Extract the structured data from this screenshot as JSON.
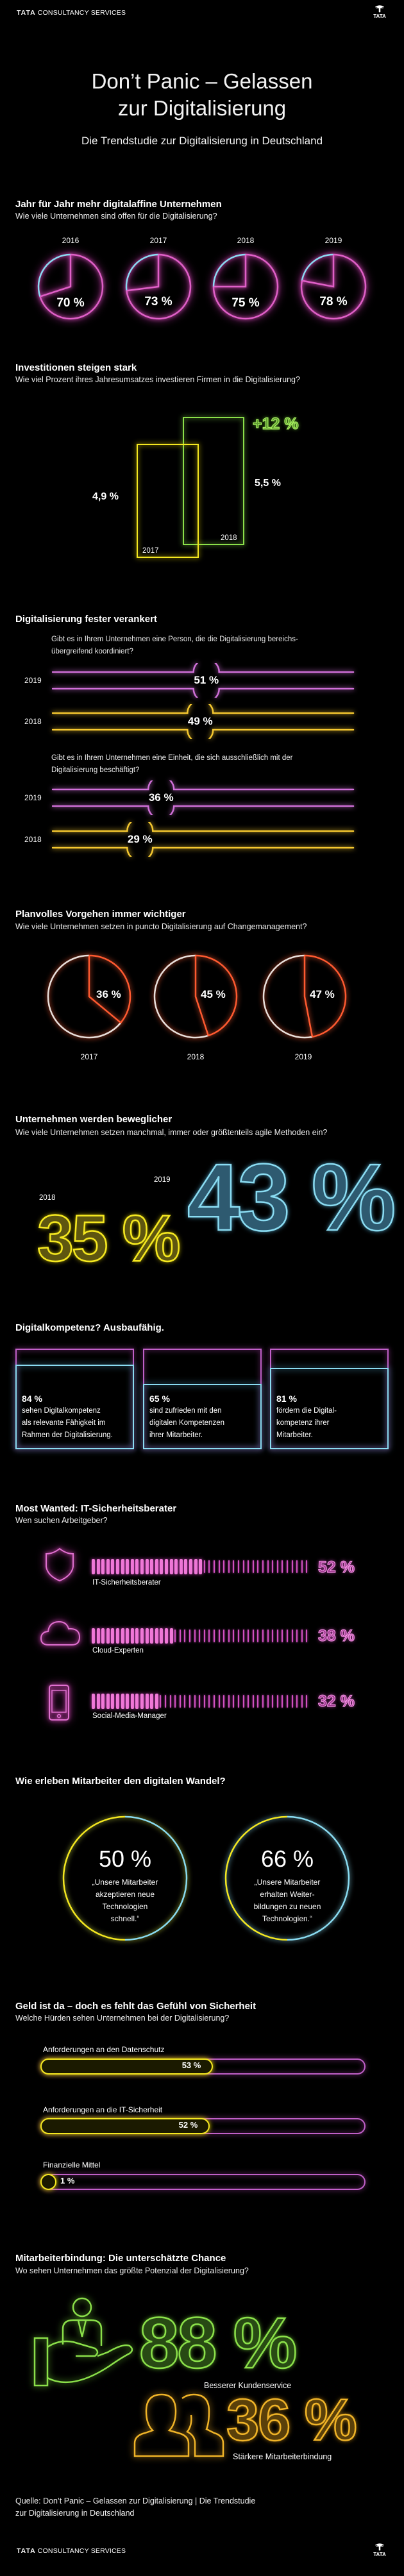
{
  "header": {
    "brand_bold": "TATA",
    "brand_rest": "CONSULTANCY SERVICES",
    "logo_text": "TATA"
  },
  "title": {
    "line1": "Don’t Panic – Gelassen",
    "line2": "zur Digitalisierung",
    "subtitle": "Die Trendstudie zur Digitalisierung in Deutschland"
  },
  "s1": {
    "heading": "Jahr für Jahr mehr digitalaffine Unternehmen",
    "question": "Wie viele Unternehmen sind offen für die Digitalisierung?",
    "items": [
      {
        "year": "2016",
        "value": 70,
        "label": "70 %"
      },
      {
        "year": "2017",
        "value": 73,
        "label": "73 %"
      },
      {
        "year": "2018",
        "value": 75,
        "label": "75 %"
      },
      {
        "year": "2019",
        "value": 78,
        "label": "78 %"
      }
    ]
  },
  "s2": {
    "heading": "Investitionen steigen stark",
    "question": "Wie viel Prozent ihres Jahresumsatzes investieren Firmen in die Digitalisierung?",
    "change": "+12 %",
    "bars": [
      {
        "year": "2017",
        "value": 4.9,
        "label": "4,9 %"
      },
      {
        "year": "2018",
        "value": 5.5,
        "label": "5,5 %"
      }
    ]
  },
  "s3": {
    "heading": "Digitalisierung fester verankert",
    "groups": [
      {
        "question_l1": "Gibt es in Ihrem Unternehmen eine Person, die die Digitalisierung bereichs-",
        "question_l2": "übergreifend koordiniert?",
        "rows": [
          {
            "year": "2019",
            "value": 51,
            "label": "51 %"
          },
          {
            "year": "2018",
            "value": 49,
            "label": "49 %"
          }
        ]
      },
      {
        "question_l1": "Gibt es in Ihrem Unternehmen eine Einheit, die sich ausschließlich mit der",
        "question_l2": "Digitalisierung beschäftigt?",
        "rows": [
          {
            "year": "2019",
            "value": 36,
            "label": "36 %"
          },
          {
            "year": "2018",
            "value": 29,
            "label": "29 %"
          }
        ]
      }
    ]
  },
  "s4": {
    "heading": "Planvolles Vorgehen immer wichtiger",
    "question": "Wie viele Unternehmen setzen in puncto Digitalisierung auf Changemanagement?",
    "items": [
      {
        "year": "2017",
        "value": 36,
        "label": "36 %"
      },
      {
        "year": "2018",
        "value": 45,
        "label": "45 %"
      },
      {
        "year": "2019",
        "value": 47,
        "label": "47 %"
      }
    ]
  },
  "s5": {
    "heading": "Unternehmen werden beweglicher",
    "question": "Wie viele Unternehmen setzen manchmal, immer oder größtenteils agile Methoden ein?",
    "items": [
      {
        "year": "2018",
        "value": 35,
        "label": "35 %"
      },
      {
        "year": "2019",
        "value": 43,
        "label": "43 %"
      }
    ]
  },
  "s6": {
    "heading": "Digitalkompetenz? Ausbaufähig.",
    "boxes": [
      {
        "value": 84,
        "label": "84 %",
        "lines": [
          "sehen Digitalkompetenz",
          "als relevante Fähigkeit im",
          "Rahmen der Digitalisierung."
        ]
      },
      {
        "value": 65,
        "label": "65 %",
        "lines": [
          "sind zufrieden mit den",
          "digitalen Kompetenzen",
          "ihrer Mitarbeiter."
        ]
      },
      {
        "value": 81,
        "label": "81 %",
        "lines": [
          "fördern die Digital-",
          "kompetenz ihrer",
          "Mitarbeiter."
        ]
      }
    ]
  },
  "s7": {
    "heading": "Most Wanted: IT-Sicherheitsberater",
    "question": "Wen suchen Arbeitgeber?",
    "items": [
      {
        "label": "IT-Sicherheitsberater",
        "value": 52,
        "pct": "52 %",
        "icon": "shield-icon"
      },
      {
        "label": "Cloud-Experten",
        "value": 38,
        "pct": "38 %",
        "icon": "cloud-icon"
      },
      {
        "label": "Social-Media-Manager",
        "value": 32,
        "pct": "32 %",
        "icon": "smartphone-icon"
      }
    ]
  },
  "s8": {
    "heading": "Wie erleben Mitarbeiter den digitalen Wandel?",
    "items": [
      {
        "value": 50,
        "pct": "50 %",
        "lines": [
          "„Unsere Mitarbeiter",
          "akzeptieren neue",
          "Technologien",
          "schnell.“"
        ]
      },
      {
        "value": 66,
        "pct": "66 %",
        "lines": [
          "„Unsere Mitarbeiter",
          "erhalten Weiter-",
          "bildungen zu neuen",
          "Technologien.“"
        ]
      }
    ]
  },
  "s9": {
    "heading": "Geld ist da – doch es fehlt das Gefühl von Sicherheit",
    "question": "Welche Hürden sehen Unternehmen bei der Digitalisierung?",
    "items": [
      {
        "label": "Anforderungen an den Datenschutz",
        "value": 53,
        "pct": "53 %"
      },
      {
        "label": "Anforderungen an die IT-Sicherheit",
        "value": 52,
        "pct": "52 %"
      },
      {
        "label": "Finanzielle Mittel",
        "value": 1,
        "pct": "1 %"
      }
    ]
  },
  "s10": {
    "heading": "Mitarbeiterbindung: Die unterschätzte Chance",
    "question": "Wo sehen Unternehmen das größte Potenzial der Digitalisierung?",
    "items": [
      {
        "value": 88,
        "pct": "88 %",
        "label": "Besserer Kundenservice",
        "icon": "customer-service-hand-icon"
      },
      {
        "value": 36,
        "pct": "36 %",
        "label": "Stärkere Mitarbeiterbindung",
        "icon": "people-icon"
      }
    ]
  },
  "footer": {
    "source_l1": "Quelle: Don’t Panic – Gelassen zur Digitalisierung | Die Trendstudie",
    "source_l2": "zur Digitalisierung in Deutschland"
  },
  "colors": {
    "pink": "#e060c8",
    "cyan": "#8adcf2",
    "yellow": "#f5e820",
    "green": "#8be04a",
    "orange": "#ff5a30",
    "white": "#e8e0dc",
    "amber": "#f0b428",
    "magenta": "#c060c8"
  }
}
